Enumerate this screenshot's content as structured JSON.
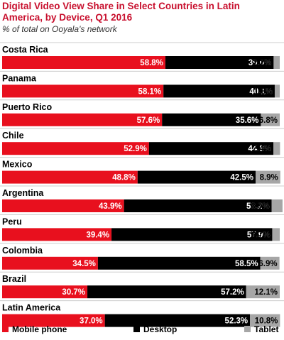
{
  "chart_data": {
    "type": "bar",
    "orientation": "horizontal",
    "stacked": true,
    "title_lines": [
      "Digital Video View Share in Select Countries in Latin",
      "America, by Device, Q1 2016"
    ],
    "subtitle": "% of total on Ooyala's network",
    "categories": [
      "Costa Rica",
      "Panama",
      "Puerto Rico",
      "Chile",
      "Mexico",
      "Argentina",
      "Peru",
      "Colombia",
      "Brazil",
      "Latin America"
    ],
    "series": [
      {
        "name": "Mobile phone",
        "color": "#e8101e",
        "label_color": "#ffffff",
        "values": [
          58.8,
          58.1,
          57.6,
          52.9,
          48.8,
          43.9,
          39.4,
          34.5,
          30.7,
          37.0
        ],
        "labels": [
          "58.8%",
          "58.1%",
          "57.6%",
          "52.9%",
          "48.8%",
          "43.9%",
          "39.4%",
          "34.5%",
          "30.7%",
          "37.0%"
        ]
      },
      {
        "name": "Desktop",
        "color": "#000000",
        "label_color": "#ffffff",
        "values": [
          39.0,
          40.1,
          35.6,
          44.8,
          42.5,
          53.2,
          57.9,
          58.5,
          57.2,
          52.3
        ],
        "labels": [
          "39.0%",
          "40.1%",
          "35.6%",
          "44.8%",
          "42.5%",
          "53.2%",
          "57.9%",
          "58.5%",
          "57.2%",
          "52.3%"
        ]
      },
      {
        "name": "Tablet",
        "color": "#a6a6a6",
        "label_color": "#000000",
        "values": [
          2.2,
          1.8,
          6.8,
          2.4,
          8.9,
          3.9,
          2.7,
          6.9,
          12.1,
          10.8
        ],
        "labels": [
          "2.2%",
          "1.8%",
          "6.8%",
          "2.4%",
          "8.9%",
          "3.9%",
          "2.7%",
          "6.9%",
          "12.1%",
          "10.8%"
        ]
      }
    ],
    "xlim": [
      0,
      100
    ],
    "legend": "bottom",
    "grid": false
  }
}
